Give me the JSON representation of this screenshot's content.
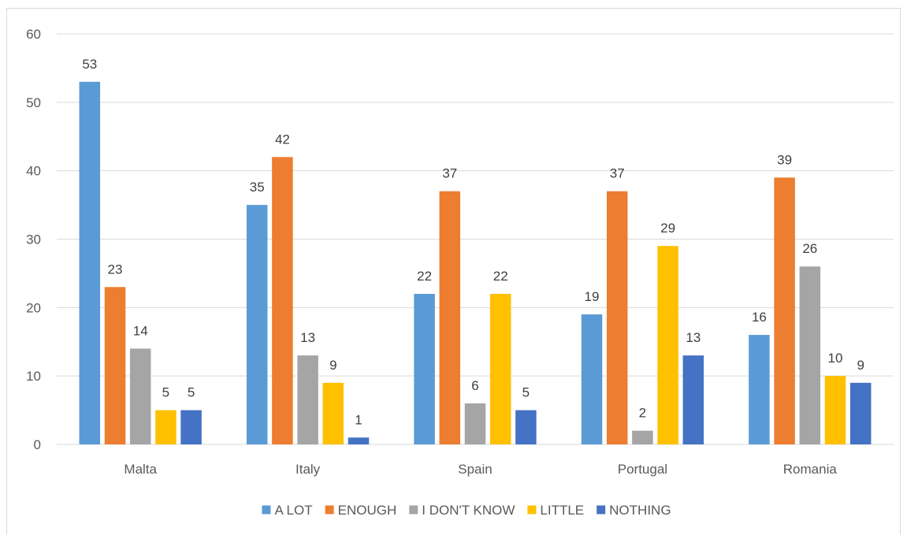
{
  "chart_data": {
    "type": "bar",
    "categories": [
      "Malta",
      "Italy",
      "Spain",
      "Portugal",
      "Romania"
    ],
    "series": [
      {
        "name": "A LOT",
        "color": "#5b9bd5",
        "values": [
          53,
          35,
          22,
          19,
          16
        ]
      },
      {
        "name": "ENOUGH",
        "color": "#ed7d31",
        "values": [
          23,
          42,
          37,
          37,
          39
        ]
      },
      {
        "name": "I DON'T KNOW",
        "color": "#a5a5a5",
        "values": [
          14,
          13,
          6,
          2,
          26
        ]
      },
      {
        "name": "LITTLE",
        "color": "#ffc000",
        "values": [
          5,
          9,
          22,
          29,
          10
        ]
      },
      {
        "name": "NOTHING",
        "color": "#4472c4",
        "values": [
          5,
          1,
          5,
          13,
          9
        ]
      }
    ],
    "ylim": [
      0,
      60
    ],
    "yticks": [
      0,
      10,
      20,
      30,
      40,
      50,
      60
    ],
    "grid": true,
    "legend_position": "bottom",
    "data_labels": true
  }
}
